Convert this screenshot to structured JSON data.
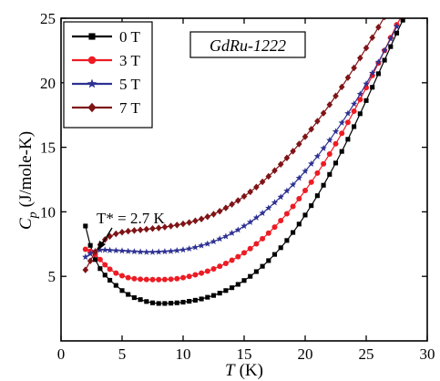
{
  "chart_data": {
    "type": "scatter",
    "xlabel_symbol": "T",
    "xlabel_unit": "(K)",
    "ylabel_symbol": "C",
    "ylabel_sub": "p",
    "ylabel_unit": "(J/mole-K)",
    "xlim": [
      0,
      30
    ],
    "ylim": [
      0,
      25
    ],
    "xticks": [
      0,
      5,
      10,
      15,
      20,
      25,
      30
    ],
    "yticks": [
      5,
      10,
      15,
      20,
      25
    ],
    "grid": false,
    "legend_position": "top-left",
    "sample_label": "GdRu-1222",
    "annotation": "T* = 2.7 K",
    "series": [
      {
        "name": "0 T",
        "color": "#000000",
        "marker": "square",
        "x": [
          2.0,
          2.4,
          2.8,
          3.2,
          3.6,
          4.0,
          4.5,
          5.0,
          5.5,
          6.0,
          6.5,
          7.0,
          7.5,
          8.0,
          8.5,
          9.0,
          9.5,
          10.0,
          10.5,
          11.0,
          11.5,
          12.0,
          12.5,
          13.0,
          13.5,
          14.0,
          14.5,
          15.0,
          15.5,
          16.0,
          16.5,
          17.0,
          17.5,
          18.0,
          18.5,
          19.0,
          19.5,
          20.0,
          20.5,
          21.0,
          21.5,
          22.0,
          22.5,
          23.0,
          23.5,
          24.0,
          24.5,
          25.0,
          25.5,
          26.0,
          26.5,
          27.0,
          27.5,
          28.0,
          28.5,
          29.0
        ],
        "y": [
          8.9,
          7.4,
          6.3,
          5.6,
          5.1,
          4.7,
          4.3,
          3.9,
          3.6,
          3.35,
          3.2,
          3.05,
          2.95,
          2.9,
          2.9,
          2.92,
          2.95,
          3.0,
          3.07,
          3.15,
          3.25,
          3.38,
          3.52,
          3.7,
          3.9,
          4.12,
          4.38,
          4.68,
          5.0,
          5.37,
          5.78,
          6.22,
          6.7,
          7.22,
          7.78,
          8.4,
          9.05,
          9.75,
          10.48,
          11.25,
          12.06,
          12.9,
          13.78,
          14.68,
          15.62,
          16.6,
          17.6,
          18.62,
          19.65,
          20.7,
          21.75,
          22.8,
          23.85,
          24.85,
          25.7,
          26.5
        ]
      },
      {
        "name": "3 T",
        "color": "#ed1c24",
        "marker": "circle",
        "x": [
          2.0,
          2.4,
          2.8,
          3.2,
          3.6,
          4.0,
          4.5,
          5.0,
          5.5,
          6.0,
          6.5,
          7.0,
          7.5,
          8.0,
          8.5,
          9.0,
          9.5,
          10.0,
          10.5,
          11.0,
          11.5,
          12.0,
          12.5,
          13.0,
          13.5,
          14.0,
          14.5,
          15.0,
          15.5,
          16.0,
          16.5,
          17.0,
          17.5,
          18.0,
          18.5,
          19.0,
          19.5,
          20.0,
          20.5,
          21.0,
          21.5,
          22.0,
          22.5,
          23.0,
          23.5,
          24.0,
          24.5,
          25.0,
          25.5,
          26.0,
          26.5,
          27.0,
          27.5,
          28.0
        ],
        "y": [
          7.1,
          6.95,
          6.7,
          6.3,
          5.9,
          5.55,
          5.25,
          5.05,
          4.9,
          4.82,
          4.78,
          4.76,
          4.75,
          4.75,
          4.76,
          4.78,
          4.82,
          4.9,
          5.0,
          5.12,
          5.25,
          5.4,
          5.58,
          5.78,
          6.0,
          6.25,
          6.52,
          6.82,
          7.15,
          7.52,
          7.92,
          8.35,
          8.82,
          9.32,
          9.85,
          10.42,
          11.02,
          11.65,
          12.3,
          13.0,
          13.72,
          14.48,
          15.27,
          16.08,
          16.93,
          17.8,
          18.7,
          19.62,
          20.56,
          21.52,
          22.5,
          23.5,
          24.5,
          25.3
        ]
      },
      {
        "name": "5 T",
        "color": "#2e3192",
        "marker": "star",
        "x": [
          2.0,
          2.4,
          2.8,
          3.2,
          3.6,
          4.0,
          4.5,
          5.0,
          5.5,
          6.0,
          6.5,
          7.0,
          7.5,
          8.0,
          8.5,
          9.0,
          9.5,
          10.0,
          10.5,
          11.0,
          11.5,
          12.0,
          12.5,
          13.0,
          13.5,
          14.0,
          14.5,
          15.0,
          15.5,
          16.0,
          16.5,
          17.0,
          17.5,
          18.0,
          18.5,
          19.0,
          19.5,
          20.0,
          20.5,
          21.0,
          21.5,
          22.0,
          22.5,
          23.0,
          23.5,
          24.0,
          24.5,
          25.0,
          25.5,
          26.0,
          26.5,
          27.0,
          27.5
        ],
        "y": [
          6.5,
          6.75,
          6.95,
          7.05,
          7.05,
          7.02,
          7.0,
          6.98,
          6.95,
          6.92,
          6.9,
          6.88,
          6.88,
          6.9,
          6.92,
          6.95,
          7.0,
          7.06,
          7.14,
          7.25,
          7.38,
          7.52,
          7.7,
          7.9,
          8.1,
          8.35,
          8.6,
          8.9,
          9.2,
          9.55,
          9.9,
          10.3,
          10.72,
          11.15,
          11.62,
          12.1,
          12.62,
          13.15,
          13.72,
          14.3,
          14.92,
          15.55,
          16.22,
          16.9,
          17.62,
          18.36,
          19.12,
          19.92,
          20.75,
          21.6,
          22.5,
          23.4,
          24.35
        ]
      },
      {
        "name": "7 T",
        "color": "#7f1416",
        "marker": "diamond",
        "x": [
          2.0,
          2.4,
          2.8,
          3.2,
          3.6,
          4.0,
          4.5,
          5.0,
          5.5,
          6.0,
          6.5,
          7.0,
          7.5,
          8.0,
          8.5,
          9.0,
          9.5,
          10.0,
          10.5,
          11.0,
          11.5,
          12.0,
          12.5,
          13.0,
          13.5,
          14.0,
          14.5,
          15.0,
          15.5,
          16.0,
          16.5,
          17.0,
          17.5,
          18.0,
          18.5,
          19.0,
          19.5,
          20.0,
          20.5,
          21.0,
          21.5,
          22.0,
          22.5,
          23.0,
          23.5,
          24.0,
          24.5,
          25.0,
          25.5,
          26.0,
          26.5,
          27.0,
          27.5
        ],
        "y": [
          5.5,
          6.2,
          6.9,
          7.45,
          7.85,
          8.1,
          8.3,
          8.42,
          8.5,
          8.55,
          8.6,
          8.65,
          8.7,
          8.75,
          8.82,
          8.9,
          8.98,
          9.07,
          9.17,
          9.3,
          9.45,
          9.62,
          9.82,
          10.05,
          10.3,
          10.58,
          10.88,
          11.2,
          11.55,
          11.92,
          12.32,
          12.75,
          13.2,
          13.68,
          14.18,
          14.7,
          15.25,
          15.82,
          16.4,
          17.02,
          17.65,
          18.3,
          18.98,
          19.68,
          20.4,
          21.15,
          21.92,
          22.7,
          23.5,
          24.3,
          25.1,
          25.9,
          26.7
        ]
      }
    ]
  }
}
